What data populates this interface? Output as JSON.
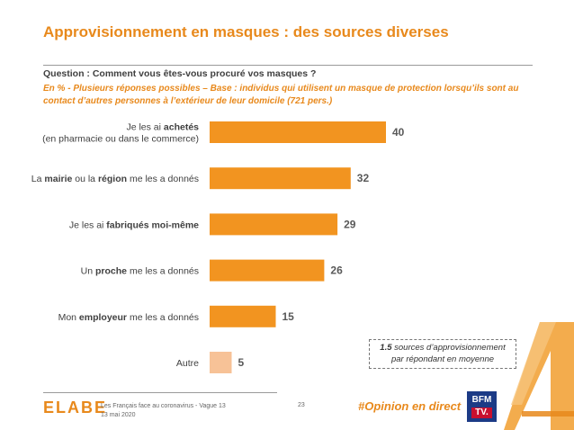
{
  "header": {
    "title": "Approvisionnement en masques : des sources diverses",
    "question": "Question : Comment vous êtes-vous procuré vos masques ?",
    "base": "En % - Plusieurs réponses possibles – Base : individus qui utilisent un masque de protection lorsqu’ils sont au contact d’autres personnes à l’extérieur de leur domicile (721 pers.)"
  },
  "chart_data": {
    "type": "bar",
    "orientation": "horizontal",
    "categories": [
      "Je les ai achetés (en pharmacie ou dans le commerce)",
      "La mairie ou la région me les a donnés",
      "Je les ai fabriqués moi-même",
      "Un proche me les a donnés",
      "Mon employeur me les a donnés",
      "Autre"
    ],
    "category_lines": [
      [
        "Je les ai achetés",
        "(en pharmacie ou dans le commerce)"
      ],
      [
        "La mairie ou la région me les a donnés"
      ],
      [
        "Je les ai fabriqués moi-même"
      ],
      [
        "Un proche me les a donnés"
      ],
      [
        "Mon employeur me les a donnés"
      ],
      [
        "Autre"
      ]
    ],
    "values": [
      40,
      32,
      29,
      26,
      15,
      5
    ],
    "colors": [
      "#f29420",
      "#f29420",
      "#f29420",
      "#f29420",
      "#f29420",
      "#f7c297"
    ],
    "xlim": [
      0,
      50
    ],
    "unit": "%",
    "grid": false,
    "title": ""
  },
  "note": {
    "strong": "1.5",
    "text_1": " sources d’approvisionnement",
    "text_2": "par répondant en moyenne"
  },
  "footer": {
    "logo": "ELABE",
    "source": "Les Français face au coronavirus - Vague 13",
    "date": "13 mai 2020",
    "page": "23",
    "hashtag": "#Opinion en direct",
    "bfm_top": "BFM",
    "bfm_bottom": "TV."
  },
  "colors": {
    "accent": "#e8891c",
    "bar": "#f29420",
    "bar_light": "#f7c297"
  }
}
